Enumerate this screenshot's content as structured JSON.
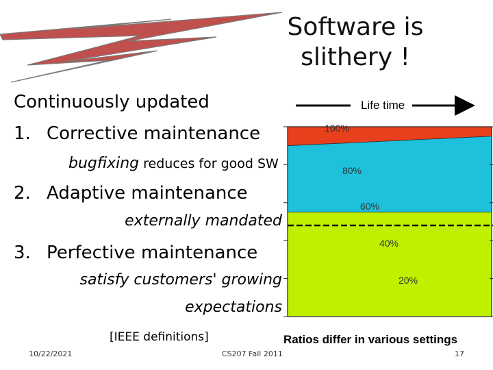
{
  "slide": {
    "title_line1": "Software is",
    "title_line2": "slithery !",
    "intro": "Continuously updated",
    "items": [
      {
        "number": "1.",
        "label": "Corrective maintenance",
        "detail_italic": "bugfixing",
        "detail_rest": " reduces for good SW"
      },
      {
        "number": "2.",
        "label": "Adaptive maintenance",
        "detail_italic": "externally mandated"
      },
      {
        "number": "3.",
        "label": "Perfective maintenance",
        "detail_line1": "satisfy customers' growing",
        "detail_line2": "expectations"
      }
    ],
    "citation": "[IEEE definitions]",
    "ratios_caption": "Ratios differ in various settings",
    "footer_date": "10/22/2021",
    "footer_course": "CS207 Fall 2011",
    "page_number": "17"
  },
  "chart": {
    "axis_label": "Life time",
    "percent_labels": [
      "100%",
      "80%",
      "60%",
      "40%",
      "20%"
    ],
    "colors": {
      "corrective": "#e8401c",
      "adaptive": "#1fc0dc",
      "perfective": "#bff000",
      "lightning": "#c0504d"
    },
    "icons": [
      "lightning-bolt-icon",
      "arrow-right-icon"
    ]
  },
  "chart_data": {
    "type": "area",
    "y_labels": [
      "100%",
      "80%",
      "60%",
      "40%",
      "20%"
    ],
    "series": [
      {
        "values": [
          10,
          5
        ]
      },
      {
        "values": [
          35,
          40
        ]
      },
      {
        "values": [
          55,
          55
        ]
      }
    ]
  }
}
